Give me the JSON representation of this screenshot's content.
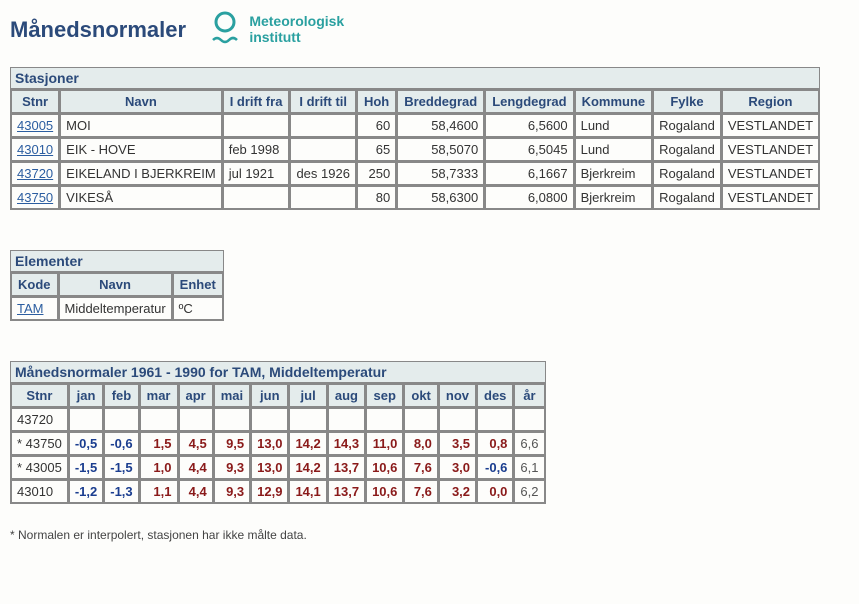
{
  "page": {
    "title": "Månedsnormaler",
    "logo_line1": "Meteorologisk",
    "logo_line2": "institutt"
  },
  "stations": {
    "header": "Stasjoner",
    "columns": [
      "Stnr",
      "Navn",
      "I drift fra",
      "I drift til",
      "Hoh",
      "Breddegrad",
      "Lengdegrad",
      "Kommune",
      "Fylke",
      "Region"
    ],
    "rows": [
      {
        "stnr": "43005",
        "navn": "MOI",
        "fra": "",
        "til": "",
        "hoh": "60",
        "bredde": "58,4600",
        "lengde": "6,5600",
        "kommune": "Lund",
        "fylke": "Rogaland",
        "region": "VESTLANDET"
      },
      {
        "stnr": "43010",
        "navn": "EIK - HOVE",
        "fra": "feb 1998",
        "til": "",
        "hoh": "65",
        "bredde": "58,5070",
        "lengde": "6,5045",
        "kommune": "Lund",
        "fylke": "Rogaland",
        "region": "VESTLANDET"
      },
      {
        "stnr": "43720",
        "navn": "EIKELAND I BJERKREIM",
        "fra": "jul 1921",
        "til": "des 1926",
        "hoh": "250",
        "bredde": "58,7333",
        "lengde": "6,1667",
        "kommune": "Bjerkreim",
        "fylke": "Rogaland",
        "region": "VESTLANDET"
      },
      {
        "stnr": "43750",
        "navn": "VIKESÅ",
        "fra": "",
        "til": "",
        "hoh": "80",
        "bredde": "58,6300",
        "lengde": "6,0800",
        "kommune": "Bjerkreim",
        "fylke": "Rogaland",
        "region": "VESTLANDET"
      }
    ]
  },
  "elements": {
    "header": "Elementer",
    "columns": [
      "Kode",
      "Navn",
      "Enhet"
    ],
    "rows": [
      {
        "kode": "TAM",
        "navn": "Middeltemperatur",
        "enhet": "ºC"
      }
    ]
  },
  "normals": {
    "header": "Månedsnormaler 1961 - 1990 for TAM, Middeltemperatur",
    "columns": [
      "Stnr",
      "jan",
      "feb",
      "mar",
      "apr",
      "mai",
      "jun",
      "jul",
      "aug",
      "sep",
      "okt",
      "nov",
      "des",
      "år"
    ],
    "rows": [
      {
        "stnr": "43720",
        "vals": [
          "",
          "",
          "",
          "",
          "",
          "",
          "",
          "",
          "",
          "",
          "",
          "",
          ""
        ]
      },
      {
        "stnr": "* 43750",
        "vals": [
          "-0,5",
          "-0,6",
          "1,5",
          "4,5",
          "9,5",
          "13,0",
          "14,2",
          "14,3",
          "11,0",
          "8,0",
          "3,5",
          "0,8",
          "6,6"
        ]
      },
      {
        "stnr": "* 43005",
        "vals": [
          "-1,5",
          "-1,5",
          "1,0",
          "4,4",
          "9,3",
          "13,0",
          "14,2",
          "13,7",
          "10,6",
          "7,6",
          "3,0",
          "-0,6",
          "6,1"
        ]
      },
      {
        "stnr": "43010",
        "vals": [
          "-1,2",
          "-1,3",
          "1,1",
          "4,4",
          "9,3",
          "12,9",
          "14,1",
          "13,7",
          "10,6",
          "7,6",
          "3,2",
          "0,0",
          "6,2"
        ]
      }
    ]
  },
  "footnote": "* Normalen er interpolert, stasjonen har ikke målte data."
}
